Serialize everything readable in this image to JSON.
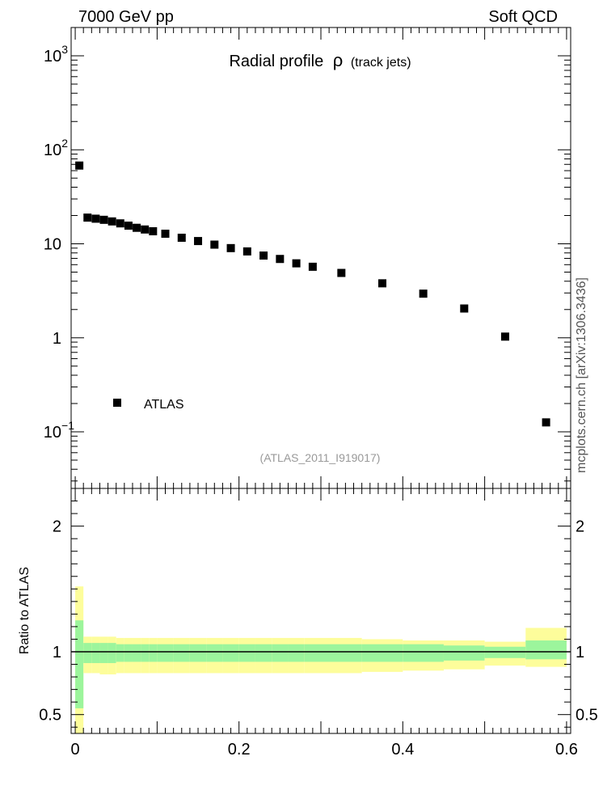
{
  "header": {
    "left": "7000 GeV pp",
    "right": "Soft QCD"
  },
  "side_label": "mcplots.cern.ch [arXiv:1306.3436]",
  "chart_data": {
    "type": "scatter",
    "title_main": "Radial profile",
    "title_symbol": "ρ",
    "title_sub": "(track jets)",
    "analysis_id": "(ATLAS_2011_I919017)",
    "xlim": [
      -0.005,
      0.605
    ],
    "x_ticks": [
      "0",
      "0.2",
      "0.4",
      "0.6"
    ],
    "main_panel": {
      "scale": "log",
      "ylim": [
        0.025,
        2000
      ],
      "y_ticks": [
        {
          "value": 1000,
          "base": "10",
          "exp": "3"
        },
        {
          "value": 100,
          "base": "10",
          "exp": "2"
        },
        {
          "value": 10,
          "base": "10",
          "exp": ""
        },
        {
          "value": 1,
          "base": "1",
          "exp": ""
        },
        {
          "value": 0.1,
          "base": "10",
          "exp": "−1"
        }
      ],
      "legend": [
        {
          "name": "ATLAS",
          "marker": "square",
          "color": "#000000"
        }
      ],
      "series": [
        {
          "name": "ATLAS",
          "x": [
            0.005,
            0.015,
            0.025,
            0.035,
            0.045,
            0.055,
            0.065,
            0.075,
            0.085,
            0.095,
            0.11,
            0.13,
            0.15,
            0.17,
            0.19,
            0.21,
            0.23,
            0.25,
            0.27,
            0.29,
            0.325,
            0.375,
            0.425,
            0.475,
            0.525,
            0.575
          ],
          "y": [
            68,
            19,
            18.5,
            18,
            17.3,
            16.5,
            15.6,
            14.8,
            14.2,
            13.6,
            12.8,
            11.6,
            10.7,
            9.8,
            9.0,
            8.3,
            7.5,
            6.9,
            6.2,
            5.7,
            4.9,
            3.8,
            2.95,
            2.05,
            1.03,
            0.126
          ]
        }
      ]
    },
    "ratio_panel": {
      "ylabel": "Ratio to ATLAS",
      "ylim": [
        0.35,
        2.3
      ],
      "y_ticks": [
        "0.5",
        "1",
        "2"
      ],
      "y_tick_values": [
        0.5,
        1,
        2
      ],
      "bands": {
        "inner_color": "#9cf59c",
        "outer_color": "#fdfd9b",
        "bins": [
          {
            "lo": 0.0,
            "hi": 0.01,
            "inner": [
              0.55,
              1.25
            ],
            "outer": [
              0.0,
              1.52
            ]
          },
          {
            "lo": 0.01,
            "hi": 0.02,
            "inner": [
              0.91,
              1.07
            ],
            "outer": [
              0.83,
              1.12
            ]
          },
          {
            "lo": 0.02,
            "hi": 0.03,
            "inner": [
              0.91,
              1.07
            ],
            "outer": [
              0.83,
              1.12
            ]
          },
          {
            "lo": 0.03,
            "hi": 0.04,
            "inner": [
              0.91,
              1.07
            ],
            "outer": [
              0.82,
              1.12
            ]
          },
          {
            "lo": 0.04,
            "hi": 0.05,
            "inner": [
              0.91,
              1.07
            ],
            "outer": [
              0.82,
              1.12
            ]
          },
          {
            "lo": 0.05,
            "hi": 0.06,
            "inner": [
              0.92,
              1.06
            ],
            "outer": [
              0.83,
              1.11
            ]
          },
          {
            "lo": 0.06,
            "hi": 0.07,
            "inner": [
              0.92,
              1.06
            ],
            "outer": [
              0.83,
              1.11
            ]
          },
          {
            "lo": 0.07,
            "hi": 0.08,
            "inner": [
              0.92,
              1.06
            ],
            "outer": [
              0.83,
              1.11
            ]
          },
          {
            "lo": 0.08,
            "hi": 0.09,
            "inner": [
              0.92,
              1.06
            ],
            "outer": [
              0.83,
              1.11
            ]
          },
          {
            "lo": 0.09,
            "hi": 0.1,
            "inner": [
              0.92,
              1.06
            ],
            "outer": [
              0.83,
              1.11
            ]
          },
          {
            "lo": 0.1,
            "hi": 0.12,
            "inner": [
              0.92,
              1.06
            ],
            "outer": [
              0.83,
              1.11
            ]
          },
          {
            "lo": 0.12,
            "hi": 0.14,
            "inner": [
              0.92,
              1.06
            ],
            "outer": [
              0.83,
              1.11
            ]
          },
          {
            "lo": 0.14,
            "hi": 0.16,
            "inner": [
              0.92,
              1.06
            ],
            "outer": [
              0.83,
              1.11
            ]
          },
          {
            "lo": 0.16,
            "hi": 0.18,
            "inner": [
              0.92,
              1.06
            ],
            "outer": [
              0.83,
              1.11
            ]
          },
          {
            "lo": 0.18,
            "hi": 0.2,
            "inner": [
              0.92,
              1.06
            ],
            "outer": [
              0.83,
              1.11
            ]
          },
          {
            "lo": 0.2,
            "hi": 0.22,
            "inner": [
              0.92,
              1.06
            ],
            "outer": [
              0.83,
              1.11
            ]
          },
          {
            "lo": 0.22,
            "hi": 0.24,
            "inner": [
              0.92,
              1.06
            ],
            "outer": [
              0.83,
              1.11
            ]
          },
          {
            "lo": 0.24,
            "hi": 0.26,
            "inner": [
              0.92,
              1.06
            ],
            "outer": [
              0.83,
              1.11
            ]
          },
          {
            "lo": 0.26,
            "hi": 0.28,
            "inner": [
              0.92,
              1.06
            ],
            "outer": [
              0.83,
              1.11
            ]
          },
          {
            "lo": 0.28,
            "hi": 0.3,
            "inner": [
              0.92,
              1.06
            ],
            "outer": [
              0.83,
              1.11
            ]
          },
          {
            "lo": 0.3,
            "hi": 0.35,
            "inner": [
              0.92,
              1.06
            ],
            "outer": [
              0.83,
              1.11
            ]
          },
          {
            "lo": 0.35,
            "hi": 0.4,
            "inner": [
              0.92,
              1.06
            ],
            "outer": [
              0.84,
              1.1
            ]
          },
          {
            "lo": 0.4,
            "hi": 0.45,
            "inner": [
              0.92,
              1.06
            ],
            "outer": [
              0.85,
              1.09
            ]
          },
          {
            "lo": 0.45,
            "hi": 0.5,
            "inner": [
              0.93,
              1.05
            ],
            "outer": [
              0.86,
              1.09
            ]
          },
          {
            "lo": 0.5,
            "hi": 0.55,
            "inner": [
              0.95,
              1.04
            ],
            "outer": [
              0.89,
              1.08
            ]
          },
          {
            "lo": 0.55,
            "hi": 0.6,
            "inner": [
              0.94,
              1.09
            ],
            "outer": [
              0.88,
              1.19
            ]
          }
        ]
      }
    }
  }
}
